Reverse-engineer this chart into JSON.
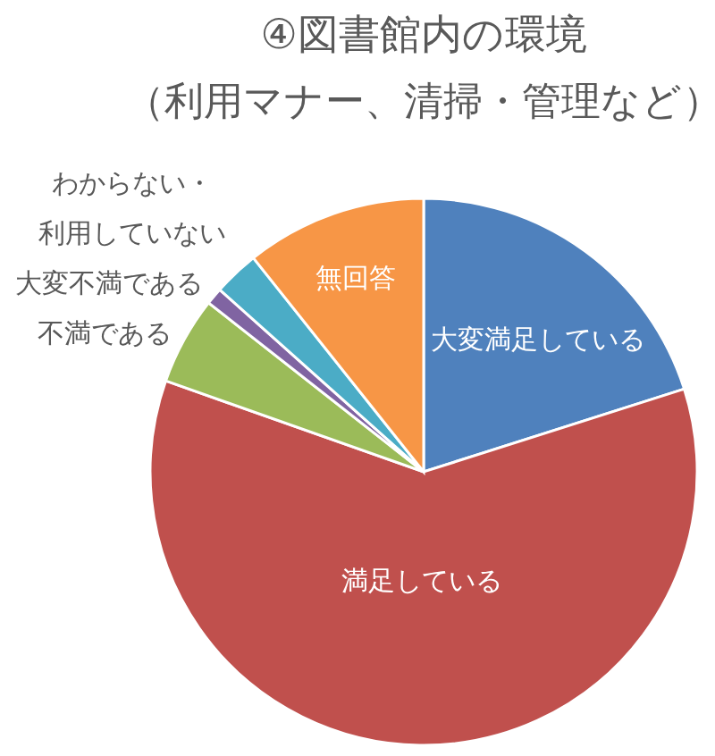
{
  "chart_data": {
    "type": "pie",
    "title": "④図書館内の環境",
    "subtitle": "（利用マナー、清掃・管理など）",
    "categories": [
      "大変満足している",
      "満足している",
      "不満である",
      "大変不満である",
      "わからない・利用していない",
      "無回答"
    ],
    "values": [
      20.1,
      60.3,
      5.2,
      1.0,
      2.7,
      10.7
    ],
    "colors": [
      "#4f81bd",
      "#c0504d",
      "#9bbb59",
      "#8064a2",
      "#4bacc6",
      "#f79646"
    ]
  }
}
